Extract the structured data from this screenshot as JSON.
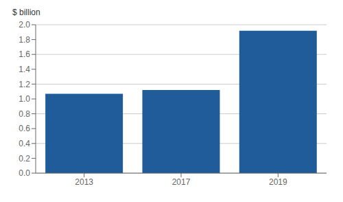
{
  "chart_data": {
    "type": "bar",
    "ylabel": "$ billion",
    "categories": [
      "2013",
      "2017",
      "2019"
    ],
    "values": [
      1.07,
      1.12,
      1.92
    ],
    "color": "#1F5C99",
    "ylim": [
      0,
      2.0
    ],
    "yticks": [
      {
        "value": 0,
        "label": "0.0"
      },
      0.2,
      0.4,
      0.6,
      0.8,
      {
        "value": 1,
        "label": "1.0"
      },
      1.2,
      1.4,
      1.6,
      1.8,
      {
        "value": 2,
        "label": "2.0"
      }
    ],
    "grid": true
  }
}
